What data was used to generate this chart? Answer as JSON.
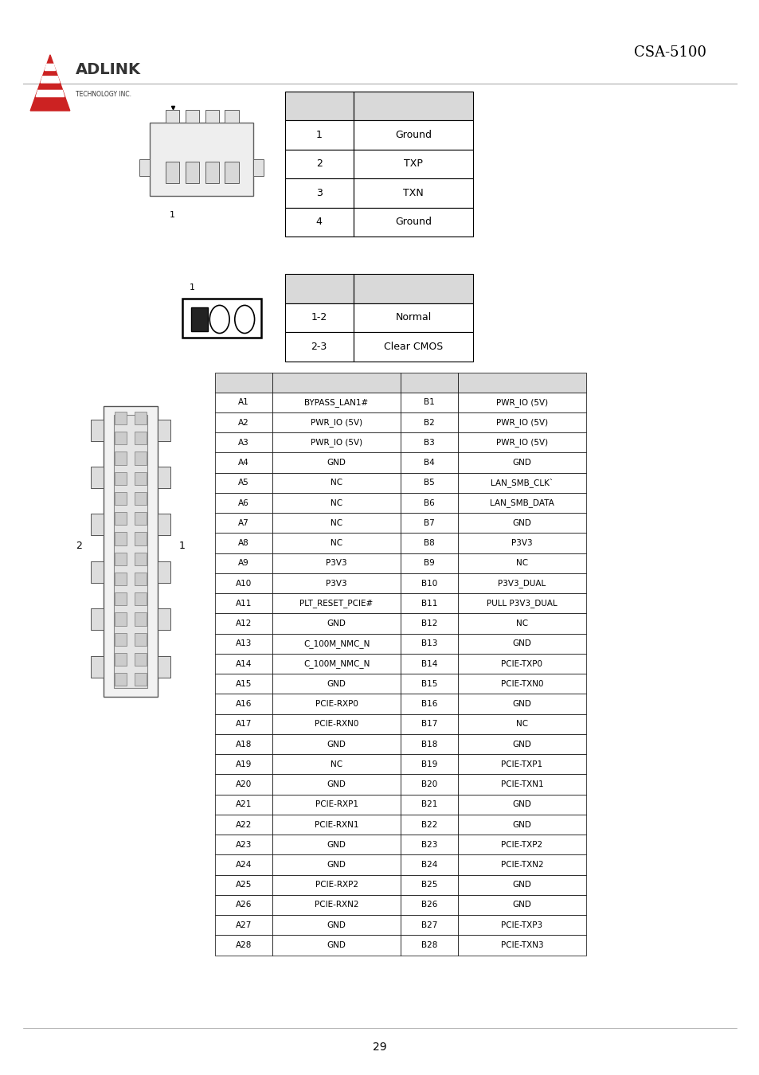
{
  "page_bg": "#ffffff",
  "header_text": "CSA-5100",
  "footer_text": "29",
  "table1_rows": [
    [
      "1",
      "Ground"
    ],
    [
      "2",
      "TXP"
    ],
    [
      "3",
      "TXN"
    ],
    [
      "4",
      "Ground"
    ]
  ],
  "table2_rows": [
    [
      "1-2",
      "Normal"
    ],
    [
      "2-3",
      "Clear CMOS"
    ]
  ],
  "table3_rows": [
    [
      "A1",
      "BYPASS_LAN1#",
      "B1",
      "PWR_IO (5V)"
    ],
    [
      "A2",
      "PWR_IO (5V)",
      "B2",
      "PWR_IO (5V)"
    ],
    [
      "A3",
      "PWR_IO (5V)",
      "B3",
      "PWR_IO (5V)"
    ],
    [
      "A4",
      "GND",
      "B4",
      "GND"
    ],
    [
      "A5",
      "NC",
      "B5",
      "LAN_SMB_CLK`"
    ],
    [
      "A6",
      "NC",
      "B6",
      "LAN_SMB_DATA"
    ],
    [
      "A7",
      "NC",
      "B7",
      "GND"
    ],
    [
      "A8",
      "NC",
      "B8",
      "P3V3"
    ],
    [
      "A9",
      "P3V3",
      "B9",
      "NC"
    ],
    [
      "A10",
      "P3V3",
      "B10",
      "P3V3_DUAL"
    ],
    [
      "A11",
      "PLT_RESET_PCIE#",
      "B11",
      "PULL P3V3_DUAL"
    ],
    [
      "A12",
      "GND",
      "B12",
      "NC"
    ],
    [
      "A13",
      "C_100M_NMC_N",
      "B13",
      "GND"
    ],
    [
      "A14",
      "C_100M_NMC_N",
      "B14",
      "PCIE-TXP0"
    ],
    [
      "A15",
      "GND",
      "B15",
      "PCIE-TXN0"
    ],
    [
      "A16",
      "PCIE-RXP0",
      "B16",
      "GND"
    ],
    [
      "A17",
      "PCIE-RXN0",
      "B17",
      "NC"
    ],
    [
      "A18",
      "GND",
      "B18",
      "GND"
    ],
    [
      "A19",
      "NC",
      "B19",
      "PCIE-TXP1"
    ],
    [
      "A20",
      "GND",
      "B20",
      "PCIE-TXN1"
    ],
    [
      "A21",
      "PCIE-RXP1",
      "B21",
      "GND"
    ],
    [
      "A22",
      "PCIE-RXN1",
      "B22",
      "GND"
    ],
    [
      "A23",
      "GND",
      "B23",
      "PCIE-TXP2"
    ],
    [
      "A24",
      "GND",
      "B24",
      "PCIE-TXN2"
    ],
    [
      "A25",
      "PCIE-RXP2",
      "B25",
      "GND"
    ],
    [
      "A26",
      "PCIE-RXN2",
      "B26",
      "GND"
    ],
    [
      "A27",
      "GND",
      "B27",
      "PCIE-TXP3"
    ],
    [
      "A28",
      "GND",
      "B28",
      "PCIE-TXN3"
    ]
  ],
  "header_color": "#d9d9d9",
  "border_color": "#000000",
  "text_color": "#000000",
  "adlink_red": "#cc2222",
  "adlink_dark": "#333333"
}
